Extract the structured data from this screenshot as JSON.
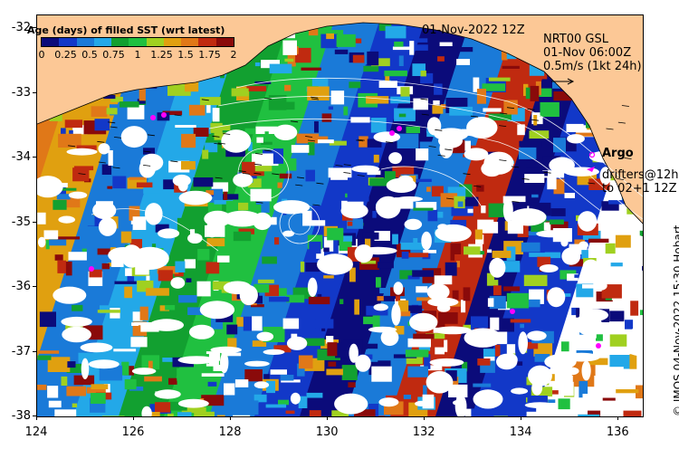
{
  "map": {
    "title": "01-Nov-2022 12Z",
    "lat_ticks": [
      "-32",
      "-33",
      "-34",
      "-35",
      "-36",
      "-37",
      "-38"
    ],
    "lon_ticks": [
      "124",
      "126",
      "128",
      "130",
      "132",
      "134",
      "136"
    ],
    "lat_range": [
      -38.0,
      -31.8
    ],
    "lon_range": [
      124.0,
      136.5
    ]
  },
  "colorbar": {
    "title": "Age (days) of filled SST (wrt latest)",
    "labels": [
      "0",
      "0.25",
      "0.5",
      "0.75",
      "1",
      "1.25",
      "1.5",
      "1.75",
      "2"
    ],
    "range": [
      0,
      2
    ],
    "colors": [
      "#0b0b7a",
      "#1238c8",
      "#1a7ad8",
      "#23a8e8",
      "#12a030",
      "#20c040",
      "#a0d020",
      "#e0a010",
      "#e07818",
      "#c02a10",
      "#8a0a0a"
    ]
  },
  "product": {
    "line1": "NRT00 GSL",
    "line2": "01-Nov 06:00Z",
    "scale": "0.5m/s (1kt 24h)"
  },
  "legend": {
    "argo": "Argo",
    "drifters_line1": "drifters@12h",
    "drifters_line2": "to 02+1 12Z"
  },
  "credit": "© IMOS 04-Nov-2022 15:30 Hobart",
  "colors": {
    "land": "#fcc896",
    "no_data": "#ffffff",
    "argo_marker": "#ff00ff",
    "contour": "#ffffff"
  }
}
